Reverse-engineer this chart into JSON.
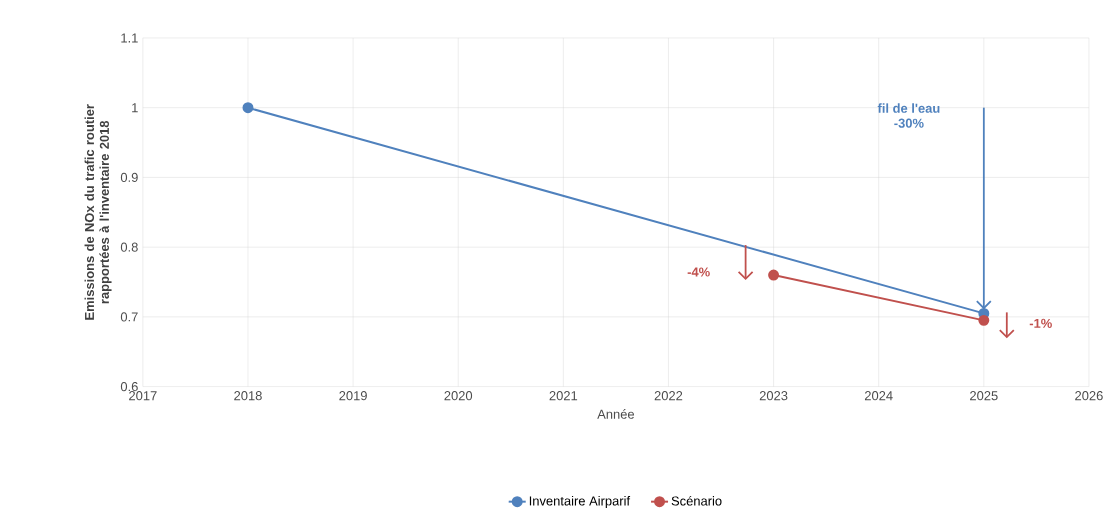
{
  "chart_data": {
    "type": "line",
    "xlabel": "Année",
    "ylabel": "Emissions de NOx du trafic routier rapportées à l'inventaire 2018",
    "series": [
      {
        "name": "Inventaire Airparif",
        "color": "#4f81bd",
        "x": [
          2018,
          2025
        ],
        "values": [
          1.0,
          0.705
        ]
      },
      {
        "name": "Scénario",
        "color": "#c0504d",
        "x": [
          2023,
          2025
        ],
        "values": [
          0.76,
          0.695
        ]
      }
    ],
    "annotations": [
      "fil de l'eau\n-30%",
      "-4%",
      "-1%"
    ],
    "xlim": [
      2017,
      2026
    ],
    "xticks": [
      2017,
      2018,
      2019,
      2020,
      2021,
      2022,
      2023,
      2024,
      2025,
      2026
    ],
    "ylim": [
      0.6,
      1.1
    ],
    "yticks": [
      0.6,
      0.7,
      0.8,
      0.9,
      1,
      1.1
    ],
    "grid": true,
    "legend": "bottom",
    "marker": "circle",
    "line_style": "solid"
  }
}
